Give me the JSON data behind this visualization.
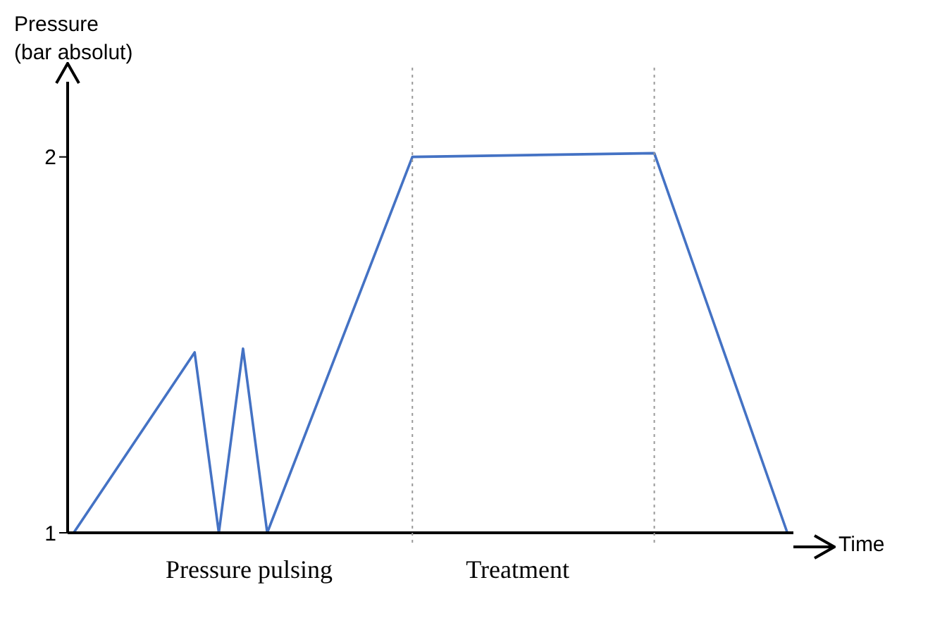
{
  "chart_data": {
    "type": "line",
    "xlabel": "Time",
    "ylabel": "Pressure (bar absolut)",
    "categories": [
      null,
      null,
      null,
      null,
      null,
      null,
      null,
      null,
      null,
      null,
      null,
      null,
      null,
      null,
      null,
      null,
      null,
      null,
      null,
      null,
      null,
      null,
      null,
      null,
      null,
      null,
      null,
      null,
      null,
      null,
      null,
      null,
      null,
      null,
      null,
      null,
      null,
      null,
      null,
      null,
      null,
      null,
      null,
      null,
      null,
      null,
      null,
      null,
      null,
      null,
      null,
      null,
      null,
      null,
      null,
      null,
      null,
      null,
      null,
      null
    ],
    "series": [
      {
        "color": "#4472c4",
        "values": [
          1,
          null,
          null,
          null,
          null,
          null,
          null,
          null,
          null,
          null,
          1.48,
          null,
          1,
          null,
          1.49,
          null,
          1,
          null,
          null,
          null,
          null,
          null,
          null,
          null,
          null,
          null,
          null,
          null,
          2.0,
          null,
          null,
          null,
          null,
          null,
          null,
          null,
          null,
          null,
          null,
          null,
          null,
          null,
          null,
          null,
          null,
          null,
          null,
          null,
          2.01,
          null,
          null,
          null,
          null,
          null,
          null,
          null,
          null,
          null,
          null,
          1
        ]
      }
    ],
    "ylim": [
      1,
      2.2
    ],
    "yticks": [
      1,
      2
    ],
    "tick_labels": "y",
    "grid": false,
    "legend": false,
    "marker": "none",
    "line_style": "solid",
    "annotations": [
      "Pressure pulsing",
      "Treatment"
    ]
  }
}
